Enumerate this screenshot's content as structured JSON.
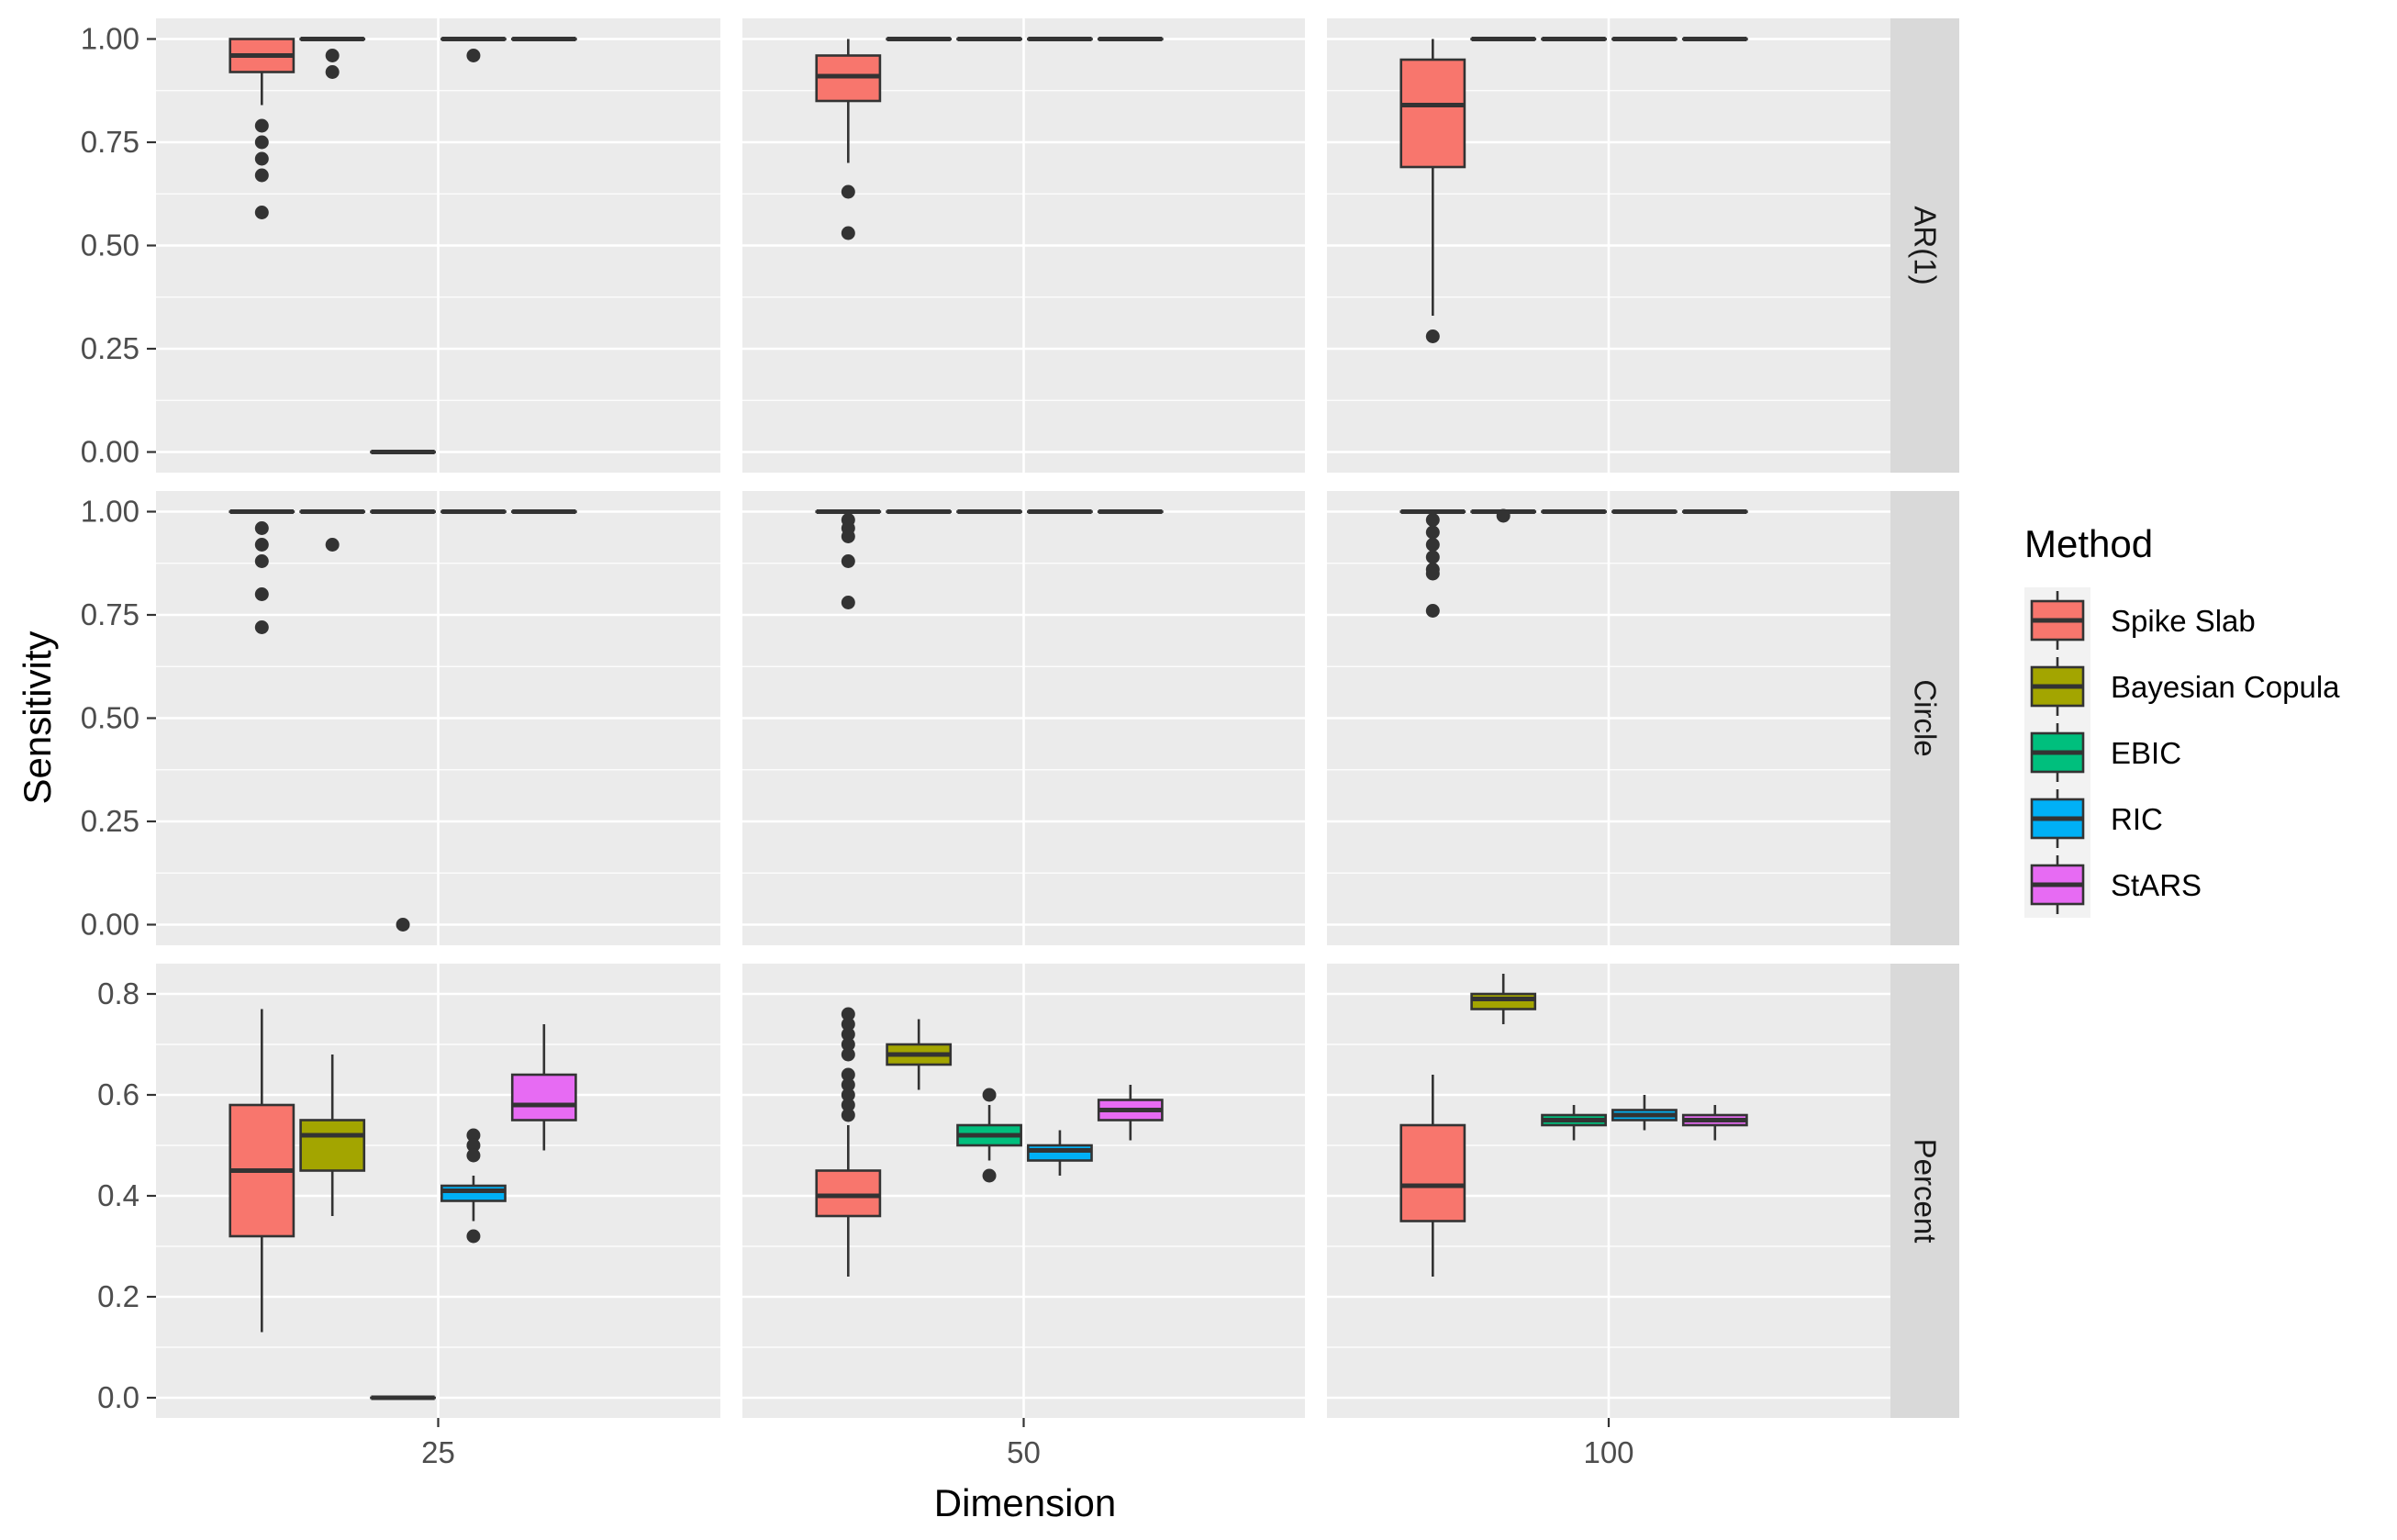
{
  "chart_data": {
    "type": "boxplot",
    "xlabel": "Dimension",
    "ylabel": "Sensitivity",
    "legend_title": "Method",
    "legend_position": "right",
    "methods": [
      {
        "name": "Spike Slab",
        "color": "#F8766D"
      },
      {
        "name": "Bayesian Copula",
        "color": "#A3A500"
      },
      {
        "name": "EBIC",
        "color": "#00BF7D"
      },
      {
        "name": "RIC",
        "color": "#00B0F6"
      },
      {
        "name": "StARS",
        "color": "#E76BF3"
      }
    ],
    "columns": [
      "25",
      "50",
      "100"
    ],
    "rows": [
      {
        "label": "AR(1)",
        "ylim": [
          -0.05,
          1.05
        ],
        "ticks": [
          0,
          0.25,
          0.5,
          0.75,
          1
        ],
        "tick_labels": [
          "0.00",
          "0.25",
          "0.50",
          "0.75",
          "1.00"
        ],
        "boxes": [
          [
            {
              "min": 0.84,
              "q1": 0.92,
              "median": 0.96,
              "q3": 1.0,
              "max": 1.0,
              "outliers": [
                0.79,
                0.75,
                0.71,
                0.67,
                0.58
              ]
            },
            {
              "min": 1.0,
              "q1": 1.0,
              "median": 1.0,
              "q3": 1.0,
              "max": 1.0,
              "outliers": [
                0.96,
                0.92
              ]
            },
            {
              "min": 0.0,
              "q1": 0.0,
              "median": 0.0,
              "q3": 0.0,
              "max": 0.0,
              "outliers": []
            },
            {
              "min": 1.0,
              "q1": 1.0,
              "median": 1.0,
              "q3": 1.0,
              "max": 1.0,
              "outliers": [
                0.96
              ]
            },
            {
              "min": 1.0,
              "q1": 1.0,
              "median": 1.0,
              "q3": 1.0,
              "max": 1.0,
              "outliers": []
            }
          ],
          [
            {
              "min": 0.7,
              "q1": 0.85,
              "median": 0.91,
              "q3": 0.96,
              "max": 1.0,
              "outliers": [
                0.63,
                0.53
              ]
            },
            {
              "min": 1.0,
              "q1": 1.0,
              "median": 1.0,
              "q3": 1.0,
              "max": 1.0,
              "outliers": []
            },
            {
              "min": 1.0,
              "q1": 1.0,
              "median": 1.0,
              "q3": 1.0,
              "max": 1.0,
              "outliers": []
            },
            {
              "min": 1.0,
              "q1": 1.0,
              "median": 1.0,
              "q3": 1.0,
              "max": 1.0,
              "outliers": []
            },
            {
              "min": 1.0,
              "q1": 1.0,
              "median": 1.0,
              "q3": 1.0,
              "max": 1.0,
              "outliers": []
            }
          ],
          [
            {
              "min": 0.33,
              "q1": 0.69,
              "median": 0.84,
              "q3": 0.95,
              "max": 1.0,
              "outliers": [
                0.28
              ]
            },
            {
              "min": 1.0,
              "q1": 1.0,
              "median": 1.0,
              "q3": 1.0,
              "max": 1.0,
              "outliers": []
            },
            {
              "min": 1.0,
              "q1": 1.0,
              "median": 1.0,
              "q3": 1.0,
              "max": 1.0,
              "outliers": []
            },
            {
              "min": 1.0,
              "q1": 1.0,
              "median": 1.0,
              "q3": 1.0,
              "max": 1.0,
              "outliers": []
            },
            {
              "min": 1.0,
              "q1": 1.0,
              "median": 1.0,
              "q3": 1.0,
              "max": 1.0,
              "outliers": []
            }
          ]
        ]
      },
      {
        "label": "Circle",
        "ylim": [
          -0.05,
          1.05
        ],
        "ticks": [
          0,
          0.25,
          0.5,
          0.75,
          1
        ],
        "tick_labels": [
          "0.00",
          "0.25",
          "0.50",
          "0.75",
          "1.00"
        ],
        "boxes": [
          [
            {
              "min": 1.0,
              "q1": 1.0,
              "median": 1.0,
              "q3": 1.0,
              "max": 1.0,
              "outliers": [
                0.96,
                0.92,
                0.88,
                0.8,
                0.72
              ]
            },
            {
              "min": 1.0,
              "q1": 1.0,
              "median": 1.0,
              "q3": 1.0,
              "max": 1.0,
              "outliers": [
                0.92
              ]
            },
            {
              "min": 1.0,
              "q1": 1.0,
              "median": 1.0,
              "q3": 1.0,
              "max": 1.0,
              "outliers": [
                0.0
              ]
            },
            {
              "min": 1.0,
              "q1": 1.0,
              "median": 1.0,
              "q3": 1.0,
              "max": 1.0,
              "outliers": []
            },
            {
              "min": 1.0,
              "q1": 1.0,
              "median": 1.0,
              "q3": 1.0,
              "max": 1.0,
              "outliers": []
            }
          ],
          [
            {
              "min": 1.0,
              "q1": 1.0,
              "median": 1.0,
              "q3": 1.0,
              "max": 1.0,
              "outliers": [
                0.98,
                0.96,
                0.94,
                0.88,
                0.78
              ]
            },
            {
              "min": 1.0,
              "q1": 1.0,
              "median": 1.0,
              "q3": 1.0,
              "max": 1.0,
              "outliers": []
            },
            {
              "min": 1.0,
              "q1": 1.0,
              "median": 1.0,
              "q3": 1.0,
              "max": 1.0,
              "outliers": []
            },
            {
              "min": 1.0,
              "q1": 1.0,
              "median": 1.0,
              "q3": 1.0,
              "max": 1.0,
              "outliers": []
            },
            {
              "min": 1.0,
              "q1": 1.0,
              "median": 1.0,
              "q3": 1.0,
              "max": 1.0,
              "outliers": []
            }
          ],
          [
            {
              "min": 1.0,
              "q1": 1.0,
              "median": 1.0,
              "q3": 1.0,
              "max": 1.0,
              "outliers": [
                0.98,
                0.95,
                0.92,
                0.89,
                0.86,
                0.85,
                0.76
              ]
            },
            {
              "min": 1.0,
              "q1": 1.0,
              "median": 1.0,
              "q3": 1.0,
              "max": 1.0,
              "outliers": [
                0.99
              ]
            },
            {
              "min": 1.0,
              "q1": 1.0,
              "median": 1.0,
              "q3": 1.0,
              "max": 1.0,
              "outliers": []
            },
            {
              "min": 1.0,
              "q1": 1.0,
              "median": 1.0,
              "q3": 1.0,
              "max": 1.0,
              "outliers": []
            },
            {
              "min": 1.0,
              "q1": 1.0,
              "median": 1.0,
              "q3": 1.0,
              "max": 1.0,
              "outliers": []
            }
          ]
        ]
      },
      {
        "label": "Percent",
        "ylim": [
          -0.04,
          0.86
        ],
        "ticks": [
          0,
          0.2,
          0.4,
          0.6,
          0.8
        ],
        "tick_labels": [
          "0.0",
          "0.2",
          "0.4",
          "0.6",
          "0.8"
        ],
        "boxes": [
          [
            {
              "min": 0.13,
              "q1": 0.32,
              "median": 0.45,
              "q3": 0.58,
              "max": 0.77,
              "outliers": []
            },
            {
              "min": 0.36,
              "q1": 0.45,
              "median": 0.52,
              "q3": 0.55,
              "max": 0.68,
              "outliers": []
            },
            {
              "min": 0.0,
              "q1": 0.0,
              "median": 0.0,
              "q3": 0.0,
              "max": 0.0,
              "outliers": []
            },
            {
              "min": 0.35,
              "q1": 0.39,
              "median": 0.41,
              "q3": 0.42,
              "max": 0.44,
              "outliers": [
                0.52,
                0.5,
                0.48,
                0.32
              ]
            },
            {
              "min": 0.49,
              "q1": 0.55,
              "median": 0.58,
              "q3": 0.64,
              "max": 0.74,
              "outliers": []
            }
          ],
          [
            {
              "min": 0.24,
              "q1": 0.36,
              "median": 0.4,
              "q3": 0.45,
              "max": 0.54,
              "outliers": [
                0.76,
                0.74,
                0.72,
                0.7,
                0.68,
                0.64,
                0.62,
                0.6,
                0.58,
                0.56
              ]
            },
            {
              "min": 0.61,
              "q1": 0.66,
              "median": 0.68,
              "q3": 0.7,
              "max": 0.75,
              "outliers": []
            },
            {
              "min": 0.47,
              "q1": 0.5,
              "median": 0.52,
              "q3": 0.54,
              "max": 0.58,
              "outliers": [
                0.6,
                0.44
              ]
            },
            {
              "min": 0.44,
              "q1": 0.47,
              "median": 0.49,
              "q3": 0.5,
              "max": 0.53,
              "outliers": []
            },
            {
              "min": 0.51,
              "q1": 0.55,
              "median": 0.57,
              "q3": 0.59,
              "max": 0.62,
              "outliers": []
            }
          ],
          [
            {
              "min": 0.24,
              "q1": 0.35,
              "median": 0.42,
              "q3": 0.54,
              "max": 0.64,
              "outliers": []
            },
            {
              "min": 0.74,
              "q1": 0.77,
              "median": 0.79,
              "q3": 0.8,
              "max": 0.84,
              "outliers": []
            },
            {
              "min": 0.51,
              "q1": 0.54,
              "median": 0.55,
              "q3": 0.56,
              "max": 0.58,
              "outliers": []
            },
            {
              "min": 0.53,
              "q1": 0.55,
              "median": 0.56,
              "q3": 0.57,
              "max": 0.6,
              "outliers": []
            },
            {
              "min": 0.51,
              "q1": 0.54,
              "median": 0.55,
              "q3": 0.56,
              "max": 0.58,
              "outliers": []
            }
          ]
        ]
      }
    ]
  }
}
